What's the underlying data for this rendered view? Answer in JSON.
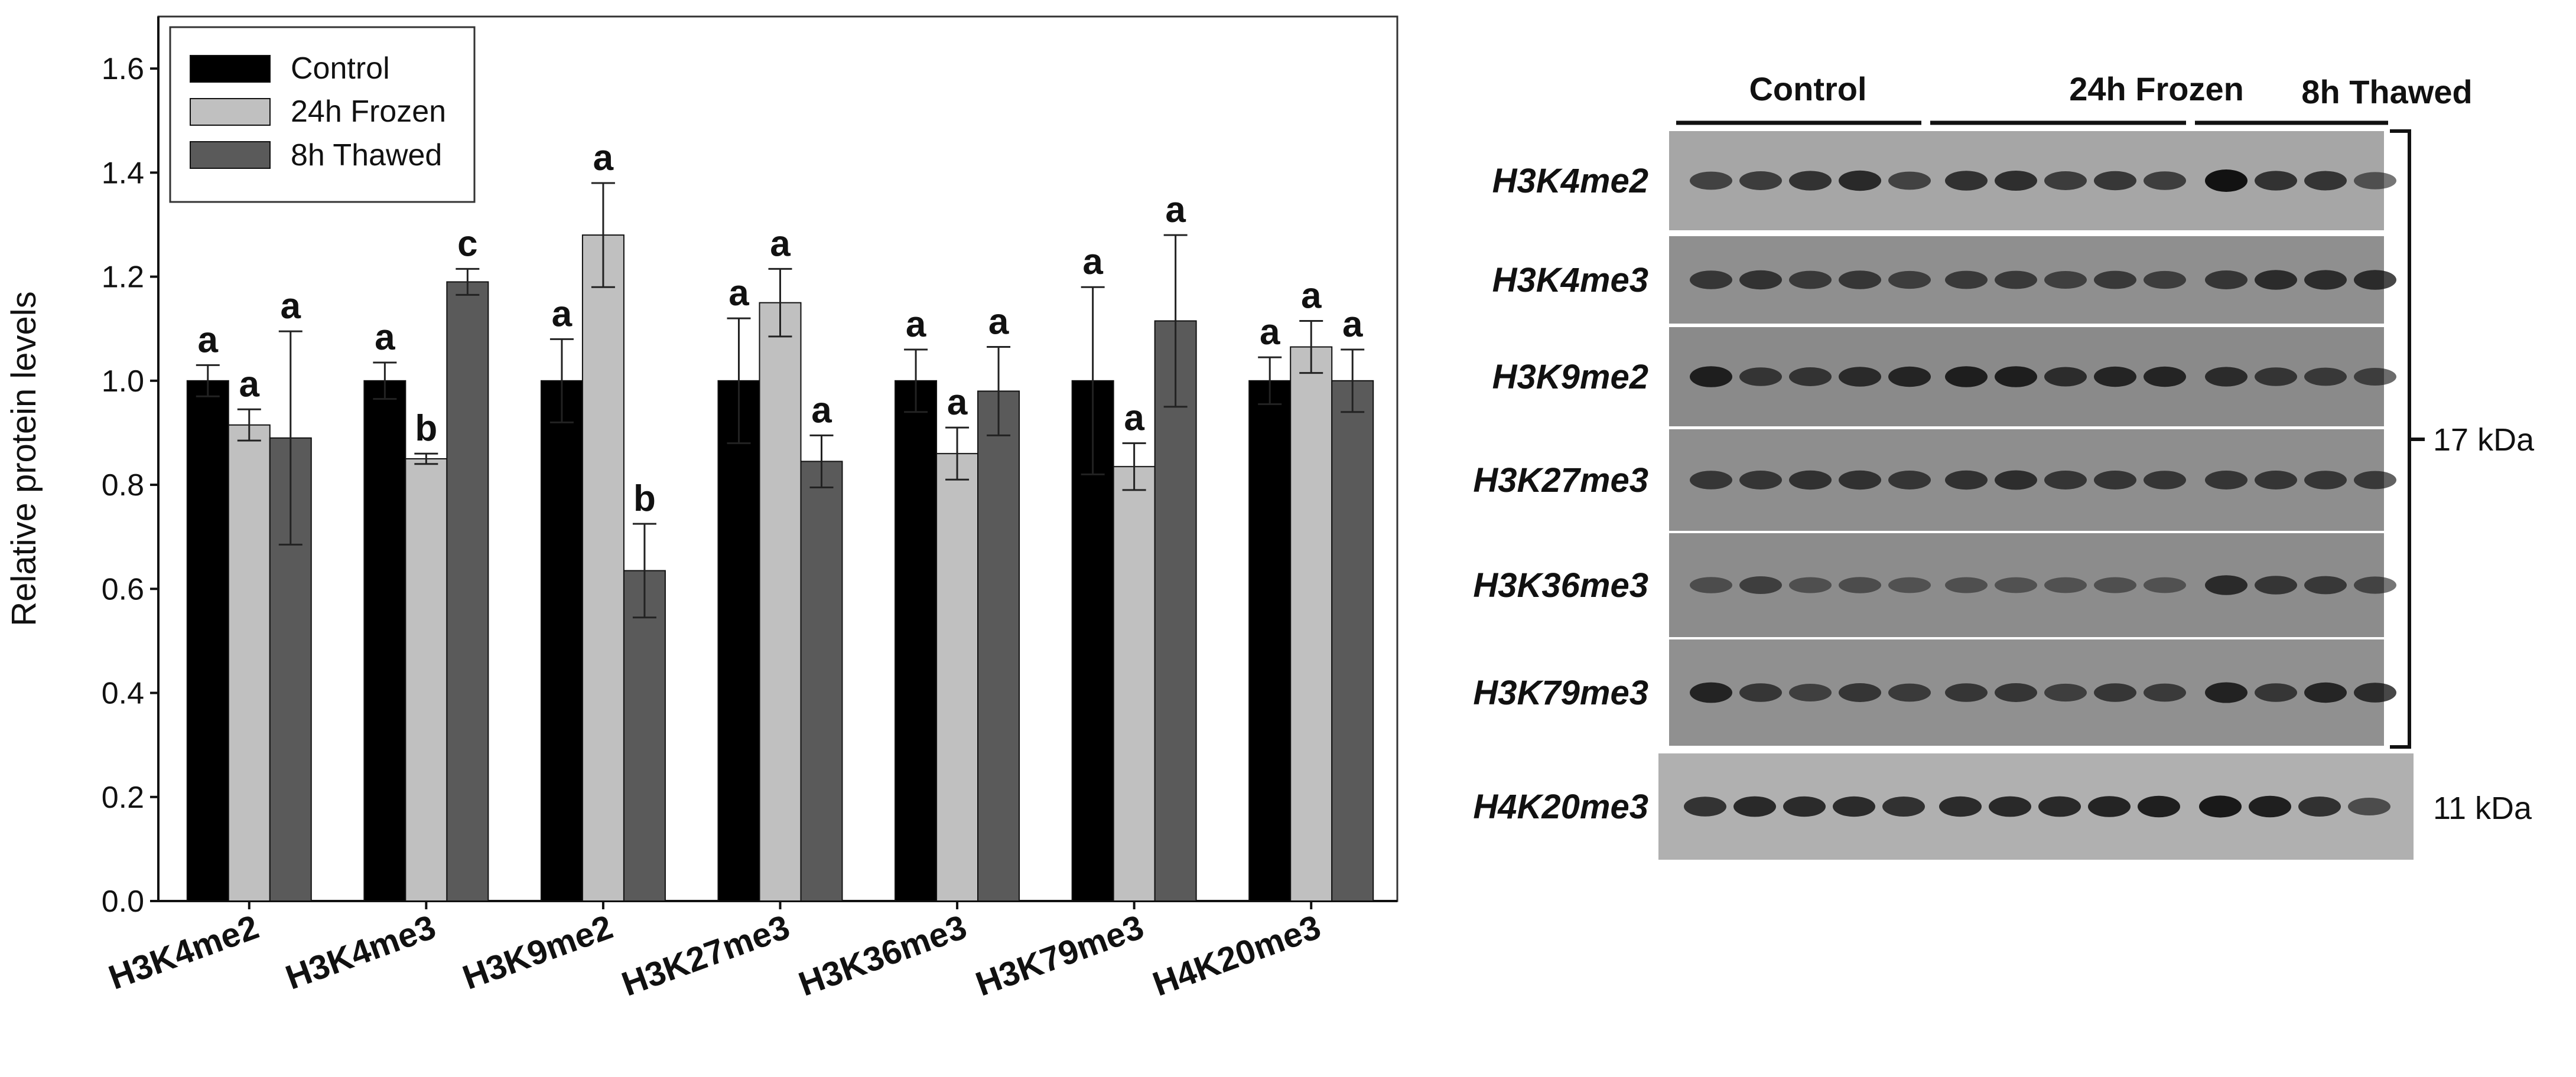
{
  "chart_data": [
    {
      "type": "bar",
      "ylabel": "Relative protein levels",
      "ylim": [
        0,
        1.7
      ],
      "yticks": [
        "0.0",
        "0.2",
        "0.4",
        "0.6",
        "0.8",
        "1.0",
        "1.2",
        "1.4",
        "1.6"
      ],
      "grid": false,
      "legend_position": "top-left",
      "categories": [
        "H3K4me2",
        "H3K4me3",
        "H3K9me2",
        "H3K27me3",
        "H3K36me3",
        "H3K79me3",
        "H4K20me3"
      ],
      "series": [
        {
          "name": "Control",
          "color": "#000000",
          "values": [
            1.0,
            1.0,
            1.0,
            1.0,
            1.0,
            1.0,
            1.0
          ],
          "errors": [
            0.03,
            0.035,
            0.08,
            0.12,
            0.06,
            0.18,
            0.045
          ],
          "labels": [
            "a",
            "a",
            "a",
            "a",
            "a",
            "a",
            "a"
          ]
        },
        {
          "name": "24h Frozen",
          "color": "#c0c0c0",
          "values": [
            0.915,
            0.85,
            1.28,
            1.15,
            0.86,
            0.835,
            1.065
          ],
          "errors": [
            0.03,
            0.01,
            0.1,
            0.065,
            0.05,
            0.045,
            0.05
          ],
          "labels": [
            "a",
            "b",
            "a",
            "a",
            "a",
            "a",
            "a"
          ]
        },
        {
          "name": "8h Thawed",
          "color": "#5a5a5a",
          "values": [
            0.89,
            1.19,
            0.635,
            0.845,
            0.98,
            1.115,
            1.0
          ],
          "errors": [
            0.205,
            0.025,
            0.09,
            0.05,
            0.085,
            0.165,
            0.06
          ],
          "labels": [
            "a",
            "c",
            "b",
            "a",
            "a",
            "a",
            "a"
          ]
        }
      ]
    }
  ],
  "blot": {
    "groups": [
      "Control",
      "24h Frozen",
      "8h Thawed"
    ],
    "rows": [
      "H3K4me2",
      "H3K4me3",
      "H3K9me2",
      "H3K27me3",
      "H3K36me3",
      "H3K79me3",
      "H4K20me3"
    ],
    "marker_17": "17 kDa",
    "marker_11": "11 kDa",
    "band_intensity": [
      [
        0.55,
        0.62,
        0.7,
        0.78,
        0.55,
        0.72,
        0.75,
        0.62,
        0.66,
        0.6,
        1.0,
        0.7,
        0.68,
        0.45
      ],
      [
        0.6,
        0.65,
        0.55,
        0.6,
        0.52,
        0.55,
        0.55,
        0.5,
        0.55,
        0.52,
        0.62,
        0.72,
        0.7,
        0.72
      ],
      [
        0.85,
        0.6,
        0.62,
        0.72,
        0.78,
        0.85,
        0.85,
        0.68,
        0.78,
        0.78,
        0.7,
        0.6,
        0.55,
        0.5
      ],
      [
        0.6,
        0.62,
        0.65,
        0.65,
        0.62,
        0.65,
        0.68,
        0.62,
        0.62,
        0.6,
        0.62,
        0.62,
        0.6,
        0.55
      ],
      [
        0.35,
        0.5,
        0.32,
        0.35,
        0.3,
        0.32,
        0.3,
        0.3,
        0.32,
        0.3,
        0.72,
        0.6,
        0.55,
        0.45
      ],
      [
        0.8,
        0.6,
        0.5,
        0.62,
        0.55,
        0.6,
        0.62,
        0.52,
        0.6,
        0.55,
        0.82,
        0.6,
        0.78,
        0.72
      ],
      [
        0.72,
        0.8,
        0.78,
        0.78,
        0.75,
        0.78,
        0.8,
        0.8,
        0.85,
        0.9,
        0.95,
        0.9,
        0.75,
        0.5
      ]
    ],
    "row_background": [
      "#a6a6a6",
      "#8f8f8f",
      "#8a8a8a",
      "#8e8e8e",
      "#8c8c8c",
      "#909090",
      "#b0b0b0"
    ]
  }
}
